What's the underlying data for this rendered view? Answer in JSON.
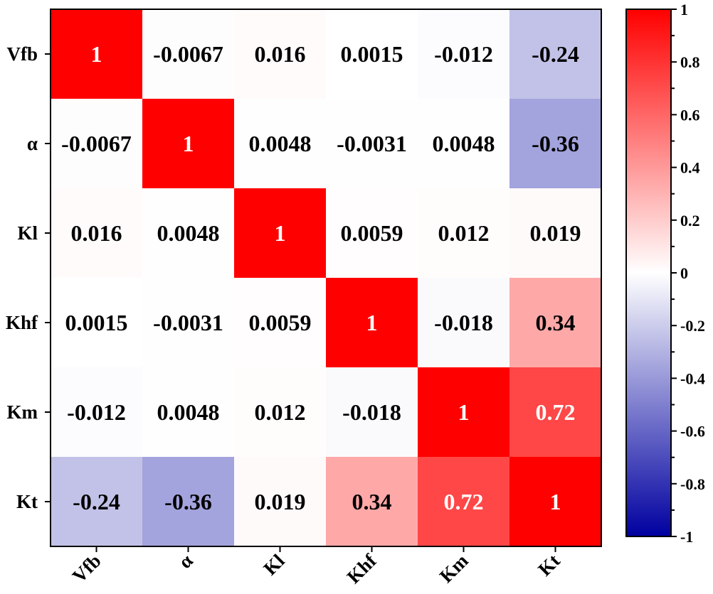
{
  "chart_data": {
    "type": "heatmap",
    "title": "",
    "xlabel": "",
    "ylabel": "",
    "row_labels": [
      "Vfb",
      "α",
      "Kl",
      "Khf",
      "Km",
      "Kt"
    ],
    "col_labels": [
      "Vfb",
      "α",
      "Kl",
      "Khf",
      "Km",
      "Kt"
    ],
    "values": [
      [
        1,
        -0.0067,
        0.016,
        0.0015,
        -0.012,
        -0.24
      ],
      [
        -0.0067,
        1,
        0.0048,
        -0.0031,
        0.0048,
        -0.36
      ],
      [
        0.016,
        0.0048,
        1,
        0.0059,
        0.012,
        0.019
      ],
      [
        0.0015,
        -0.0031,
        0.0059,
        1,
        -0.018,
        0.34
      ],
      [
        -0.012,
        0.0048,
        0.012,
        -0.018,
        1,
        0.72
      ],
      [
        -0.24,
        -0.36,
        0.019,
        0.34,
        0.72,
        1
      ]
    ],
    "value_labels": [
      [
        "1",
        "-0.0067",
        "0.016",
        "0.0015",
        "-0.012",
        "-0.24"
      ],
      [
        "-0.0067",
        "1",
        "0.0048",
        "-0.0031",
        "0.0048",
        "-0.36"
      ],
      [
        "0.016",
        "0.0048",
        "1",
        "0.0059",
        "0.012",
        "0.019"
      ],
      [
        "0.0015",
        "-0.0031",
        "0.0059",
        "1",
        "-0.018",
        "0.34"
      ],
      [
        "-0.012",
        "0.0048",
        "0.012",
        "-0.018",
        "1",
        "0.72"
      ],
      [
        "-0.24",
        "-0.36",
        "0.019",
        "0.34",
        "0.72",
        "1"
      ]
    ],
    "colorbar": {
      "range": [
        -1,
        1
      ],
      "ticks": [
        1,
        0.8,
        0.6,
        0.4,
        0.2,
        0,
        -0.2,
        -0.4,
        -0.6,
        -0.8,
        -1
      ],
      "tick_labels": [
        "1",
        "0.8",
        "0.6",
        "0.4",
        "0.2",
        "0",
        "-0.2",
        "-0.4",
        "-0.6",
        "-0.8",
        "-1"
      ],
      "colors": {
        "low": "#0000a0",
        "mid": "#ffffff",
        "high": "#ff0000"
      }
    }
  }
}
